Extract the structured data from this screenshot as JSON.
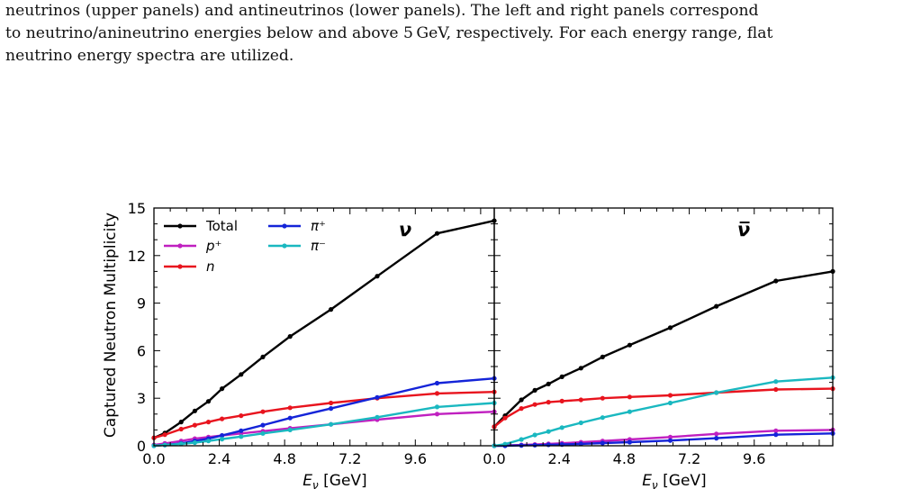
{
  "caption": {
    "lines": [
      "neutrinos (upper panels) and antineutrinos (lower panels). The left and right panels correspond",
      "to neutrino/anineutrino energies below and above 5 GeV, respectively. For each energy range, flat",
      "neutrino energy spectra are utilized."
    ]
  },
  "chart_data": {
    "type": "line",
    "ylabel": "Captured Neutron Multiplicity",
    "xlabel": "E_ν [GeV]",
    "ylim": [
      0,
      15
    ],
    "xlim": [
      0,
      12.5
    ],
    "yticks": [
      "0",
      "3",
      "6",
      "9",
      "12",
      "15"
    ],
    "xticks": [
      "0.0",
      "2.4",
      "4.8",
      "7.2",
      "9.6"
    ],
    "legend": {
      "placement": "top-left",
      "columns": 2
    },
    "panels": [
      {
        "label": "ν",
        "series": [
          {
            "name": "Total",
            "color": "#000000",
            "x": [
              0.0,
              0.4,
              1.0,
              1.5,
              2.0,
              2.5,
              3.2,
              4.0,
              5.0,
              6.5,
              8.2,
              10.4,
              12.5
            ],
            "y": [
              0.5,
              0.8,
              1.5,
              2.2,
              2.8,
              3.6,
              4.5,
              5.6,
              6.9,
              8.6,
              10.7,
              13.4,
              14.2
            ]
          },
          {
            "name": "p⁺",
            "color": "#c020c0",
            "x": [
              0.0,
              0.4,
              1.0,
              1.5,
              2.0,
              2.5,
              3.2,
              4.0,
              5.0,
              6.5,
              8.2,
              10.4,
              12.5
            ],
            "y": [
              0.05,
              0.15,
              0.3,
              0.45,
              0.55,
              0.65,
              0.78,
              0.92,
              1.1,
              1.35,
              1.65,
              2.0,
              2.15
            ]
          },
          {
            "name": "n",
            "color": "#e8141e",
            "x": [
              0.0,
              0.4,
              1.0,
              1.5,
              2.0,
              2.5,
              3.2,
              4.0,
              5.0,
              6.5,
              8.2,
              10.4,
              12.5
            ],
            "y": [
              0.5,
              0.7,
              1.05,
              1.3,
              1.5,
              1.7,
              1.9,
              2.15,
              2.4,
              2.7,
              3.0,
              3.3,
              3.4
            ]
          },
          {
            "name": "π⁺",
            "color": "#1424d8",
            "x": [
              0.0,
              0.4,
              1.0,
              1.5,
              2.0,
              2.5,
              3.2,
              4.0,
              5.0,
              6.5,
              8.2,
              10.4,
              12.5
            ],
            "y": [
              0.0,
              0.05,
              0.15,
              0.3,
              0.45,
              0.65,
              0.95,
              1.3,
              1.75,
              2.35,
              3.05,
              3.95,
              4.25
            ]
          },
          {
            "name": "π⁻",
            "color": "#1ab8c0",
            "x": [
              0.0,
              0.4,
              1.0,
              1.5,
              2.0,
              2.5,
              3.2,
              4.0,
              5.0,
              6.5,
              8.2,
              10.4,
              12.5
            ],
            "y": [
              0.0,
              0.05,
              0.12,
              0.2,
              0.3,
              0.42,
              0.58,
              0.78,
              1.0,
              1.35,
              1.8,
              2.45,
              2.7
            ]
          }
        ]
      },
      {
        "label": "ν̅",
        "series": [
          {
            "name": "Total",
            "color": "#000000",
            "x": [
              0.0,
              0.4,
              1.0,
              1.5,
              2.0,
              2.5,
              3.2,
              4.0,
              5.0,
              6.5,
              8.2,
              10.4,
              12.5
            ],
            "y": [
              1.2,
              1.9,
              2.9,
              3.5,
              3.9,
              4.35,
              4.9,
              5.6,
              6.35,
              7.45,
              8.8,
              10.4,
              11.0
            ]
          },
          {
            "name": "p⁺",
            "color": "#c020c0",
            "x": [
              0.0,
              0.4,
              1.0,
              1.5,
              2.0,
              2.5,
              3.2,
              4.0,
              5.0,
              6.5,
              8.2,
              10.4,
              12.5
            ],
            "y": [
              0.0,
              0.02,
              0.05,
              0.08,
              0.12,
              0.16,
              0.22,
              0.3,
              0.4,
              0.55,
              0.75,
              0.95,
              1.0
            ]
          },
          {
            "name": "n",
            "color": "#e8141e",
            "x": [
              0.0,
              0.4,
              1.0,
              1.5,
              2.0,
              2.5,
              3.2,
              4.0,
              5.0,
              6.5,
              8.2,
              10.4,
              12.5
            ],
            "y": [
              1.2,
              1.75,
              2.35,
              2.6,
              2.75,
              2.82,
              2.9,
              3.0,
              3.08,
              3.18,
              3.35,
              3.55,
              3.6
            ]
          },
          {
            "name": "π⁺",
            "color": "#1424d8",
            "x": [
              0.0,
              0.4,
              1.0,
              1.5,
              2.0,
              2.5,
              3.2,
              4.0,
              5.0,
              6.5,
              8.2,
              10.4,
              12.5
            ],
            "y": [
              0.0,
              0.0,
              0.02,
              0.04,
              0.06,
              0.08,
              0.12,
              0.17,
              0.23,
              0.33,
              0.48,
              0.7,
              0.78
            ]
          },
          {
            "name": "π⁻",
            "color": "#1ab8c0",
            "x": [
              0.0,
              0.4,
              1.0,
              1.5,
              2.0,
              2.5,
              3.2,
              4.0,
              5.0,
              6.5,
              8.2,
              10.4,
              12.5
            ],
            "y": [
              0.0,
              0.1,
              0.4,
              0.68,
              0.9,
              1.15,
              1.45,
              1.78,
              2.15,
              2.7,
              3.35,
              4.05,
              4.3
            ]
          }
        ]
      }
    ]
  }
}
